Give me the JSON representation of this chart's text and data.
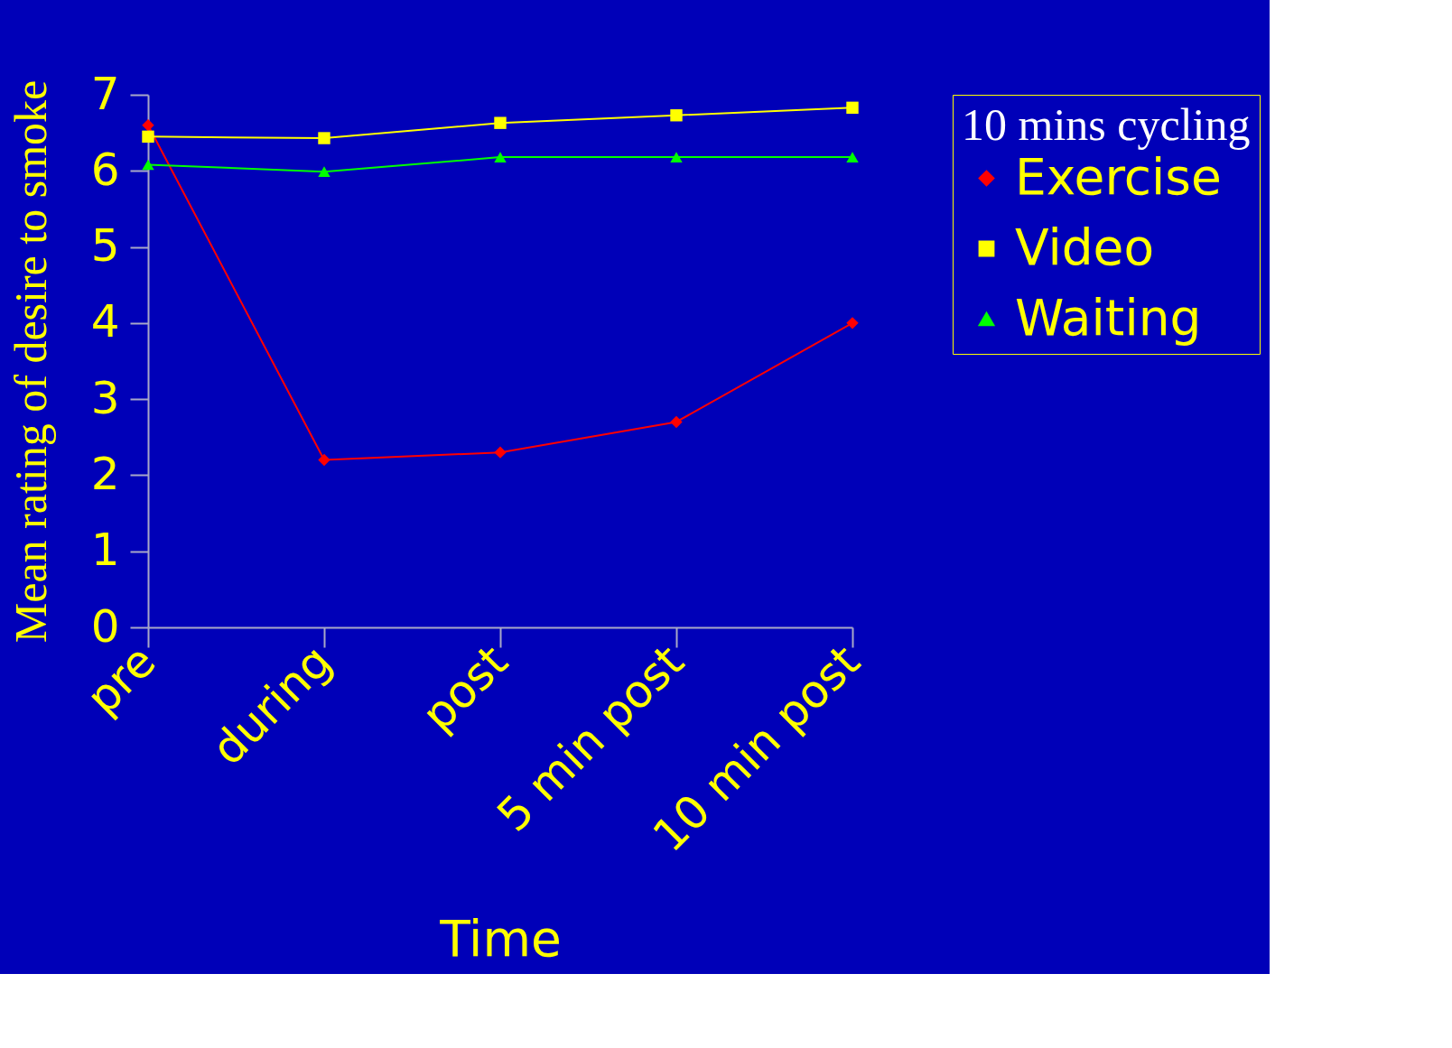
{
  "chart_data": {
    "type": "line",
    "xlabel": "Time",
    "ylabel": "Mean rating of desire to smoke",
    "legend_title": "10 mins cycling",
    "categories": [
      "pre",
      "during",
      "post",
      "5 min post",
      "10 min post"
    ],
    "series": [
      {
        "name": "Exercise",
        "color": "#ff0000",
        "marker": "diamond",
        "values": [
          6.6,
          2.2,
          2.3,
          2.7,
          4.0
        ]
      },
      {
        "name": "Video",
        "color": "#ffff00",
        "marker": "square",
        "values": [
          6.45,
          6.43,
          6.63,
          6.73,
          6.83
        ]
      },
      {
        "name": "Waiting",
        "color": "#00ff00",
        "marker": "triangle",
        "values": [
          6.08,
          5.99,
          6.18,
          6.18,
          6.18
        ]
      }
    ],
    "ylim": [
      0,
      7
    ],
    "yticks": [
      0,
      1,
      2,
      3,
      4,
      5,
      6,
      7
    ],
    "grid": false,
    "legend": "top right",
    "line_style": "solid"
  }
}
